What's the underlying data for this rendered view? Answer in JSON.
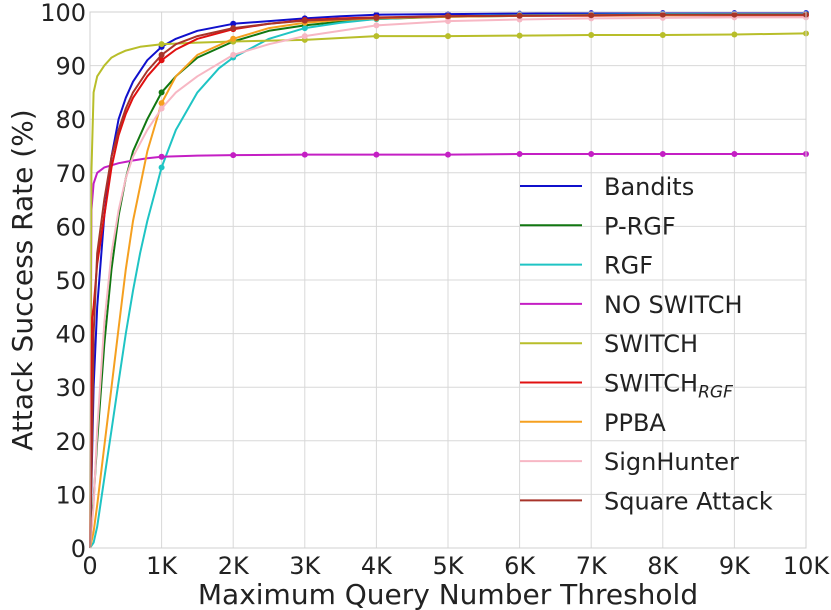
{
  "chart_data": {
    "type": "line",
    "title": "",
    "xlabel": "Maximum Query Number Threshold",
    "ylabel": "Attack Success Rate (%)",
    "xlim": [
      0,
      10000
    ],
    "ylim": [
      0,
      100
    ],
    "x_ticks": [
      0,
      1000,
      2000,
      3000,
      4000,
      5000,
      6000,
      7000,
      8000,
      9000,
      10000
    ],
    "x_tick_labels": [
      "0",
      "1K",
      "2K",
      "3K",
      "4K",
      "5K",
      "6K",
      "7K",
      "8K",
      "9K",
      "10K"
    ],
    "y_ticks": [
      0,
      10,
      20,
      30,
      40,
      50,
      60,
      70,
      80,
      90,
      100
    ],
    "y_tick_labels": [
      "0",
      "10",
      "20",
      "30",
      "40",
      "50",
      "60",
      "70",
      "80",
      "90",
      "100"
    ],
    "grid": true,
    "legend_position": "center-right",
    "series": [
      {
        "name": "Bandits",
        "color": "#1010cc",
        "x": [
          0,
          50,
          100,
          200,
          300,
          400,
          500,
          600,
          800,
          1000,
          1200,
          1500,
          2000,
          2500,
          3000,
          3500,
          4000,
          5000,
          6000,
          7000,
          8000,
          9000,
          10000
        ],
        "y": [
          0,
          30,
          45,
          62,
          73,
          80,
          84,
          87,
          91,
          93.5,
          95,
          96.5,
          97.8,
          98.3,
          98.8,
          99.2,
          99.5,
          99.6,
          99.7,
          99.8,
          99.8,
          99.8,
          99.8
        ]
      },
      {
        "name": "P-RGF",
        "color": "#117711",
        "x": [
          0,
          50,
          100,
          200,
          300,
          400,
          500,
          600,
          800,
          1000,
          1200,
          1500,
          2000,
          2500,
          3000,
          3500,
          4000,
          5000,
          6000,
          7000,
          8000,
          9000,
          10000
        ],
        "y": [
          0,
          9,
          20,
          38,
          52,
          62,
          69,
          74,
          80,
          85,
          88,
          91.5,
          94.5,
          96.5,
          97.5,
          98.2,
          98.7,
          99.1,
          99.3,
          99.4,
          99.5,
          99.5,
          99.5
        ]
      },
      {
        "name": "RGF",
        "color": "#1fc4c4",
        "x": [
          0,
          50,
          100,
          200,
          300,
          400,
          500,
          600,
          700,
          800,
          1000,
          1200,
          1500,
          1800,
          2000,
          2500,
          3000,
          3500,
          4000,
          5000,
          6000,
          7000,
          8000,
          9000,
          10000
        ],
        "y": [
          0,
          1,
          4,
          13,
          22,
          31,
          40,
          48,
          55,
          61,
          71,
          78,
          85,
          89.5,
          91.5,
          95,
          97,
          98,
          98.7,
          99.2,
          99.4,
          99.5,
          99.6,
          99.6,
          99.6
        ]
      },
      {
        "name": "NO SWITCH",
        "color": "#c41fc4",
        "x": [
          0,
          20,
          50,
          100,
          200,
          400,
          600,
          800,
          1000,
          1500,
          2000,
          3000,
          4000,
          5000,
          6000,
          7000,
          8000,
          9000,
          10000
        ],
        "y": [
          0,
          63,
          68,
          70,
          71,
          71.8,
          72.3,
          72.7,
          73,
          73.2,
          73.3,
          73.4,
          73.4,
          73.4,
          73.5,
          73.5,
          73.5,
          73.5,
          73.5
        ],
        "markers": true
      },
      {
        "name": "SWITCH",
        "color": "#b8be2a",
        "x": [
          0,
          10,
          20,
          50,
          100,
          200,
          300,
          400,
          500,
          700,
          1000,
          1500,
          2000,
          3000,
          4000,
          5000,
          6000,
          7000,
          8000,
          9000,
          10000
        ],
        "y": [
          0,
          40,
          70,
          85,
          88,
          90,
          91.5,
          92.2,
          92.8,
          93.5,
          94,
          94.3,
          94.5,
          94.8,
          95.5,
          95.5,
          95.6,
          95.7,
          95.7,
          95.8,
          96
        ]
      },
      {
        "name": "SWITCH_RGF",
        "label_main": "SWITCH",
        "label_sub": "RGF",
        "color": "#e01010",
        "x": [
          0,
          30,
          50,
          100,
          200,
          300,
          400,
          500,
          600,
          800,
          1000,
          1200,
          1500,
          2000,
          2500,
          3000,
          3500,
          4000,
          5000,
          6000,
          7000,
          8000,
          9000,
          10000
        ],
        "y": [
          0,
          43,
          45,
          53,
          62,
          71,
          77,
          81,
          84,
          88,
          91,
          93,
          95,
          96.8,
          97.8,
          98.5,
          98.8,
          99,
          99.2,
          99.3,
          99.3,
          99.4,
          99.4,
          99.4
        ]
      },
      {
        "name": "PPBA",
        "color": "#f5a020",
        "x": [
          0,
          50,
          100,
          200,
          300,
          400,
          500,
          600,
          800,
          1000,
          1200,
          1500,
          2000,
          2500,
          3000,
          3500,
          4000,
          5000,
          6000,
          7000,
          8000,
          9000,
          10000
        ],
        "y": [
          0,
          3,
          8,
          19,
          30,
          41,
          52,
          61,
          74,
          83,
          88,
          92,
          95,
          97,
          98,
          98.5,
          98.8,
          99.1,
          99.3,
          99.4,
          99.4,
          99.5,
          99.5
        ]
      },
      {
        "name": "SignHunter",
        "color": "#f7b7c4",
        "x": [
          0,
          50,
          100,
          200,
          300,
          400,
          500,
          600,
          800,
          1000,
          1200,
          1500,
          2000,
          2500,
          3000,
          3500,
          4000,
          5000,
          6000,
          7000,
          8000,
          9000,
          10000
        ],
        "y": [
          0,
          8,
          22,
          42,
          55,
          63,
          69,
          73,
          78,
          82,
          85,
          88,
          92,
          94,
          95.5,
          96.5,
          97.5,
          98.3,
          98.6,
          98.8,
          98.9,
          99,
          99
        ]
      },
      {
        "name": "Square Attack",
        "color": "#a8342a",
        "x": [
          0,
          30,
          50,
          100,
          200,
          300,
          400,
          500,
          600,
          800,
          1000,
          1200,
          1500,
          2000,
          2500,
          3000,
          4000,
          5000,
          6000,
          7000,
          8000,
          9000,
          10000
        ],
        "y": [
          0,
          20,
          40,
          55,
          65,
          73,
          78,
          82,
          85,
          89,
          92,
          94,
          95.5,
          97,
          97.8,
          98.4,
          98.9,
          99.2,
          99.3,
          99.4,
          99.5,
          99.5,
          99.5
        ]
      }
    ]
  }
}
